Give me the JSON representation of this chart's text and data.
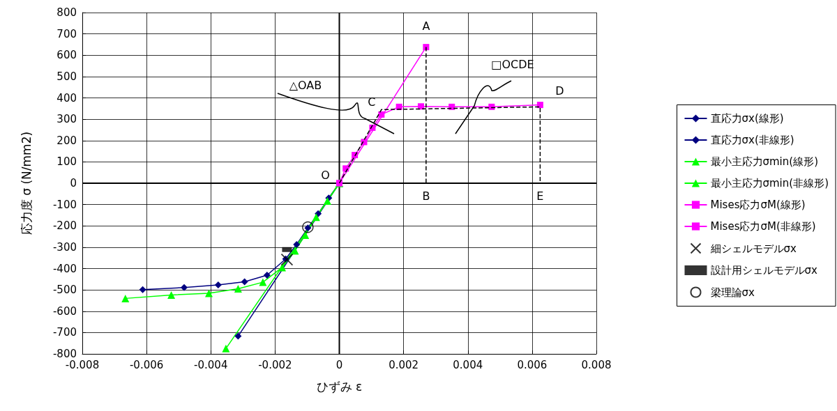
{
  "chart_data": {
    "type": "line",
    "xlabel": "ひずみ ε",
    "ylabel": "応力度 σ (N/mm2)",
    "xlim": [
      -0.008,
      0.008
    ],
    "xticks": [
      -0.008,
      -0.006,
      -0.004,
      -0.002,
      0,
      0.002,
      0.004,
      0.006,
      0.008
    ],
    "ylim": [
      -800,
      800
    ],
    "yticks": [
      -800,
      -700,
      -600,
      -500,
      -400,
      -300,
      -200,
      -100,
      0,
      100,
      200,
      300,
      400,
      500,
      600,
      700,
      800
    ],
    "grid": true,
    "legend": "right",
    "series": [
      {
        "name": "直応力σx(線形)",
        "color": "#000080",
        "marker": "diamond",
        "x": [
          0,
          -0.00315
        ],
        "values": [
          0,
          -717
        ]
      },
      {
        "name": "直応力σx(非線形)",
        "color": "#000080",
        "marker": "diamond",
        "x": [
          0,
          -0.00033,
          -0.00066,
          -0.00098,
          -0.00133,
          -0.00167,
          -0.00225,
          -0.00295,
          -0.00377,
          -0.00483,
          -0.00612
        ],
        "values": [
          0,
          -69,
          -143,
          -210,
          -287,
          -355,
          -431,
          -462,
          -477,
          -489,
          -499
        ]
      },
      {
        "name": "最小主応力σmin(線形)",
        "color": "#00ff00",
        "marker": "triangle",
        "x": [
          0,
          -0.00353
        ],
        "values": [
          0,
          -775
        ]
      },
      {
        "name": "最小主応力σmin(非線形)",
        "color": "#00ff00",
        "marker": "triangle",
        "x": [
          0,
          -0.00037,
          -0.00072,
          -0.00106,
          -0.00138,
          -0.00178,
          -0.00238,
          -0.00315,
          -0.00406,
          -0.00523,
          -0.00666
        ],
        "values": [
          0,
          -83,
          -159,
          -243,
          -317,
          -395,
          -464,
          -495,
          -516,
          -524,
          -540
        ]
      },
      {
        "name": "Mises応力σM(線形)",
        "color": "#ff00ff",
        "marker": "square",
        "x": [
          0,
          0.0027
        ],
        "values": [
          0,
          638
        ]
      },
      {
        "name": "Mises応力σM(非線形)",
        "color": "#ff00ff",
        "marker": "square",
        "x": [
          0,
          0.0002,
          0.00048,
          0.00077,
          0.00103,
          0.00131,
          0.00186,
          0.00254,
          0.0035,
          0.00474,
          0.00625
        ],
        "values": [
          0,
          69,
          132,
          193,
          260,
          322,
          358,
          360,
          358,
          358,
          367
        ]
      },
      {
        "name": "細シェルモデルσx",
        "type": "scatter",
        "color": "#000000",
        "marker": "cross",
        "x": [
          -0.00163
        ],
        "values": [
          -358
        ]
      },
      {
        "name": "設計用シェルモデルσx",
        "type": "scatter",
        "color": "#000000",
        "marker": "square",
        "x": [
          -0.00163
        ],
        "values": [
          -311
        ]
      },
      {
        "name": "梁理論σx",
        "type": "scatter",
        "color": "#000000",
        "marker": "circle",
        "x": [
          -0.00098
        ],
        "values": [
          -206
        ]
      },
      {
        "color": "#000000",
        "marker": "none",
        "line_style": "dashed",
        "x": [
          0.0027,
          0.0027
        ],
        "values": [
          638,
          0
        ]
      },
      {
        "color": "#000000",
        "marker": "none",
        "line_style": "dashed",
        "x": [
          0,
          0.00131,
          0.00625,
          0.00625
        ],
        "values": [
          0,
          345,
          358,
          0
        ]
      }
    ],
    "annotations": [
      {
        "text": "A",
        "x": 0.0027,
        "y": 638
      },
      {
        "text": "B",
        "x": 0.0027,
        "y": 0
      },
      {
        "text": "C",
        "x": 0.00131,
        "y": 322
      },
      {
        "text": "D",
        "x": 0.00625,
        "y": 367
      },
      {
        "text": "E",
        "x": 0.00625,
        "y": 0
      },
      {
        "text": "O",
        "x": 0,
        "y": 0
      },
      "△OAB",
      "□OCDE"
    ]
  }
}
